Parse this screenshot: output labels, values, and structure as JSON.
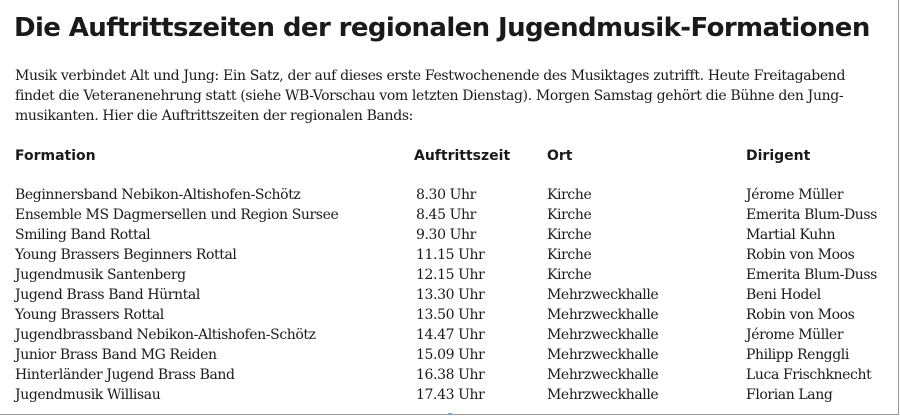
{
  "title": "Die Auftrittszeiten der regionalen Jugendmusik-Formationen",
  "intro_lines": [
    "Musik verbindet Alt und Jung: Ein Satz, der auf dieses erste Festwochenende des Musiktages zutrifft. Heute Freitagabend",
    "findet die Veteranenehrung statt (siehe WB-Vorschau vom letzten Dienstag). Morgen Samstag gehört die Bühne den Jung-",
    "musikanten. Hier die Auftrittszeiten der regionalen Bands:"
  ],
  "table": {
    "headers": {
      "formation": "Formation",
      "time": "Auftrittszeit",
      "place": "Ort",
      "conductor": "Dirigent"
    },
    "rows": [
      {
        "formation": "Beginnersband Nebikon-Altishofen-Schötz",
        "time": "8.30 Uhr",
        "place": "Kirche",
        "conductor": "Jérome Müller"
      },
      {
        "formation": "Ensemble MS Dagmersellen und Region Sursee",
        "time": "8.45 Uhr",
        "place": "Kirche",
        "conductor": "Emerita Blum-Duss"
      },
      {
        "formation": "Smiling Band Rottal",
        "time": "9.30 Uhr",
        "place": "Kirche",
        "conductor": "Martial Kuhn"
      },
      {
        "formation": "Young Brassers Beginners Rottal",
        "time": "11.15 Uhr",
        "place": "Kirche",
        "conductor": "Robin von Moos"
      },
      {
        "formation": "Jugendmusik Santenberg",
        "time": "12.15 Uhr",
        "place": "Kirche",
        "conductor": "Emerita Blum-Duss"
      },
      {
        "formation": "Jugend Brass Band Hürntal",
        "time": "13.30 Uhr",
        "place": "Mehrzweckhalle",
        "conductor": "Beni Hodel"
      },
      {
        "formation": "Young Brassers Rottal",
        "time": "13.50 Uhr",
        "place": "Mehrzweckhalle",
        "conductor": "Robin von Moos"
      },
      {
        "formation": "Jugendbrassband Nebikon-Altishofen-Schötz",
        "time": "14.47 Uhr",
        "place": "Mehrzweckhalle",
        "conductor": "Jérome Müller"
      },
      {
        "formation": "Junior Brass Band MG Reiden",
        "time": "15.09 Uhr",
        "place": "Mehrzweckhalle",
        "conductor": "Philipp Renggli"
      },
      {
        "formation": "Hinterländer Jugend Brass Band",
        "time": "16.38 Uhr",
        "place": "Mehrzweckhalle",
        "conductor": "Luca Frischknecht"
      },
      {
        "formation": "Jugendmusik Willisau",
        "time": "17.43 Uhr",
        "place": "Mehrzweckhalle",
        "conductor": "Florian Lang"
      }
    ]
  }
}
